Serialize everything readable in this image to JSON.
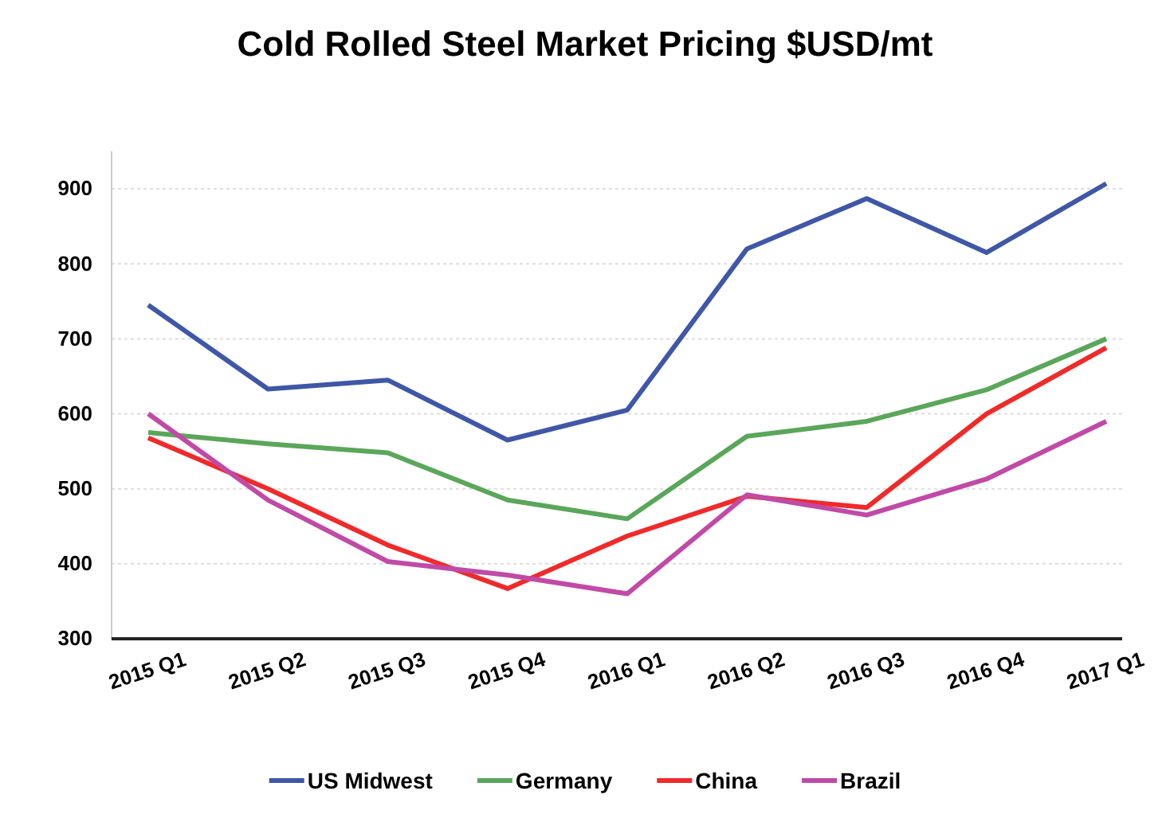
{
  "chart_data": {
    "type": "line",
    "title": "Cold Rolled Steel Market Pricing $USD/mt",
    "categories": [
      "2015 Q1",
      "2015 Q2",
      "2015 Q3",
      "2015 Q4",
      "2016 Q1",
      "2016 Q2",
      "2016 Q3",
      "2016 Q4",
      "2017 Q1"
    ],
    "series": [
      {
        "name": "US Midwest",
        "color": "#3f57a6",
        "values": [
          745,
          633,
          645,
          565,
          605,
          820,
          887,
          815,
          907
        ]
      },
      {
        "name": "Germany",
        "color": "#5aa65a",
        "values": [
          575,
          560,
          548,
          485,
          460,
          570,
          590,
          632,
          700
        ]
      },
      {
        "name": "China",
        "color": "#f02a2a",
        "values": [
          568,
          500,
          425,
          367,
          437,
          490,
          475,
          600,
          688
        ]
      },
      {
        "name": "Brazil",
        "color": "#c04aa6",
        "values": [
          600,
          485,
          403,
          385,
          360,
          492,
          465,
          513,
          590
        ]
      }
    ],
    "ylim": [
      300,
      950
    ],
    "yticks": [
      300,
      400,
      500,
      600,
      700,
      800,
      900
    ],
    "grid": "y",
    "legend": "bottom",
    "marker": "none",
    "line_style": "solid"
  }
}
